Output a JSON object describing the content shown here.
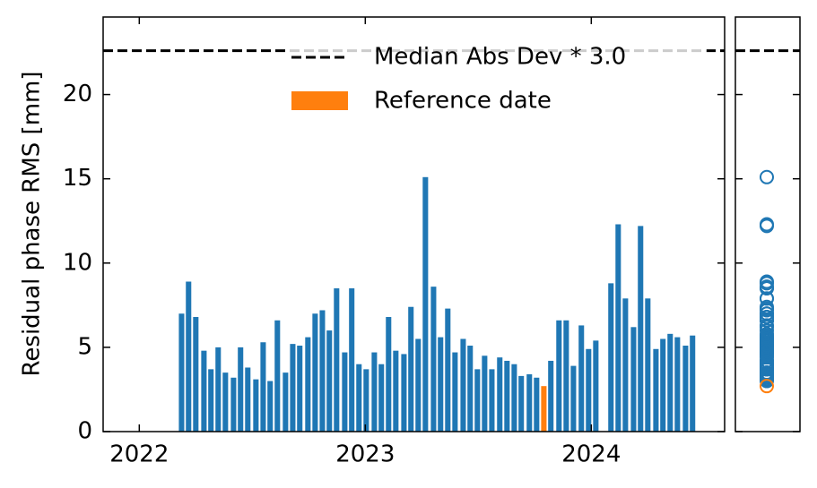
{
  "chart_data": {
    "type": "bar",
    "ylabel": "Residual phase RMS [mm]",
    "xlim": [
      2021.84,
      2024.59
    ],
    "xticks": [
      2022,
      2023,
      2024
    ],
    "ylim": [
      0,
      24.6
    ],
    "yticks": [
      0,
      5,
      10,
      15,
      20
    ],
    "color": "#1f77b4",
    "bar_width": 0.024,
    "x": [
      2022.187,
      2022.218,
      2022.25,
      2022.286,
      2022.317,
      2022.349,
      2022.381,
      2022.417,
      2022.448,
      2022.48,
      2022.516,
      2022.548,
      2022.579,
      2022.611,
      2022.647,
      2022.679,
      2022.71,
      2022.746,
      2022.778,
      2022.81,
      2022.841,
      2022.873,
      2022.909,
      2022.94,
      2022.972,
      2023.004,
      2023.04,
      2023.071,
      2023.103,
      2023.135,
      2023.171,
      2023.202,
      2023.234,
      2023.266,
      2023.302,
      2023.333,
      2023.365,
      2023.397,
      2023.433,
      2023.464,
      2023.496,
      2023.528,
      2023.56,
      2023.595,
      2023.627,
      2023.659,
      2023.69,
      2023.726,
      2023.758,
      2023.821,
      2023.857,
      2023.889,
      2023.921,
      2023.956,
      2023.988,
      2024.02,
      2024.087,
      2024.119,
      2024.151,
      2024.187,
      2024.218,
      2024.25,
      2024.286,
      2024.317,
      2024.349,
      2024.381,
      2024.417,
      2024.448
    ],
    "values": [
      7.0,
      8.9,
      6.8,
      4.8,
      3.7,
      5.0,
      3.5,
      3.2,
      5.0,
      3.8,
      3.1,
      5.3,
      3.0,
      6.6,
      3.5,
      5.2,
      5.1,
      5.6,
      7.0,
      7.2,
      6.0,
      8.5,
      4.7,
      8.5,
      4.0,
      3.7,
      4.7,
      4.0,
      6.8,
      4.8,
      4.6,
      7.4,
      5.5,
      15.1,
      8.6,
      5.6,
      7.3,
      4.7,
      5.5,
      5.1,
      3.7,
      4.5,
      3.7,
      4.4,
      4.2,
      4.0,
      3.3,
      3.4,
      3.2,
      4.2,
      6.6,
      6.6,
      3.9,
      6.3,
      4.9,
      5.4,
      8.8,
      12.3,
      7.9,
      6.2,
      12.2,
      7.9,
      4.9,
      5.5,
      5.8,
      5.6,
      5.1,
      5.7
    ],
    "reference": {
      "name": "Reference date",
      "color": "#ff7f0e",
      "x": 2023.79,
      "value": 2.7
    },
    "threshold": {
      "name": "Median Abs Dev * 3.0",
      "value": 22.6
    }
  }
}
